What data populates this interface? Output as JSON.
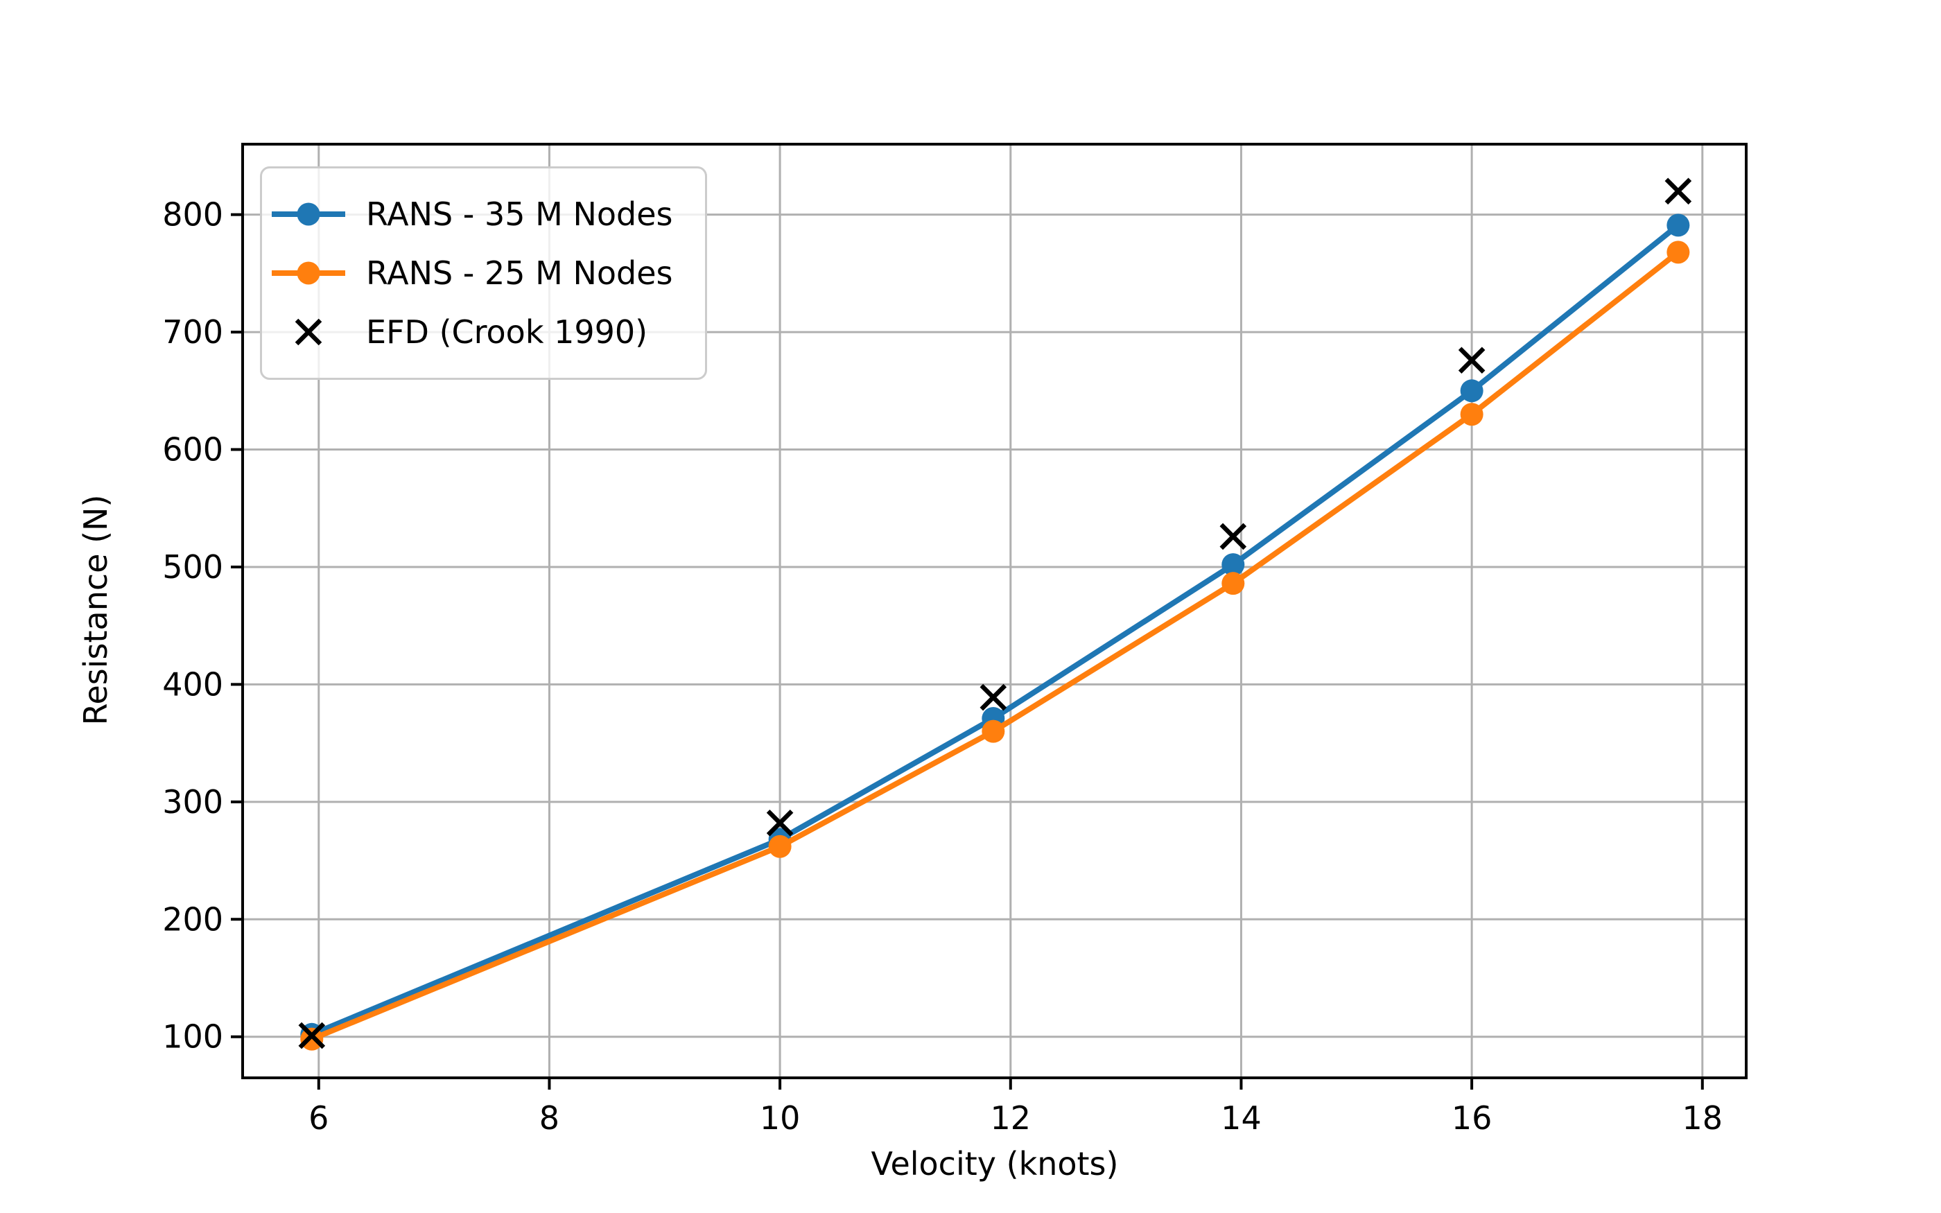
{
  "chart_data": {
    "type": "line",
    "title": "",
    "xlabel": "Velocity (knots)",
    "ylabel": "Resistance (N)",
    "x": [
      5.94,
      10.0,
      11.85,
      13.93,
      16.0,
      17.79
    ],
    "series": [
      {
        "name": "RANS - 35 M Nodes",
        "color": "#1f77b4",
        "marker": "circle",
        "line": true,
        "values": [
          102,
          268,
          371,
          502,
          650,
          791
        ]
      },
      {
        "name": "RANS - 25 M Nodes",
        "color": "#ff7f0e",
        "marker": "circle",
        "line": true,
        "values": [
          98,
          262,
          360,
          486,
          630,
          768
        ]
      },
      {
        "name": "EFD (Crook 1990)",
        "color": "#000000",
        "marker": "x",
        "line": false,
        "values": [
          101,
          282,
          389,
          526,
          676,
          820
        ]
      }
    ],
    "xticks": [
      6,
      8,
      10,
      12,
      14,
      16,
      18
    ],
    "yticks": [
      100,
      200,
      300,
      400,
      500,
      600,
      700,
      800
    ],
    "xlim": [
      5.34,
      18.38
    ],
    "ylim": [
      65,
      860
    ],
    "grid": true,
    "legend_position": "upper left",
    "colors": {
      "grid": "#b0b0b0",
      "axis": "#000000",
      "text": "#000000",
      "legend_border": "#cccccc",
      "background": "#ffffff"
    }
  }
}
